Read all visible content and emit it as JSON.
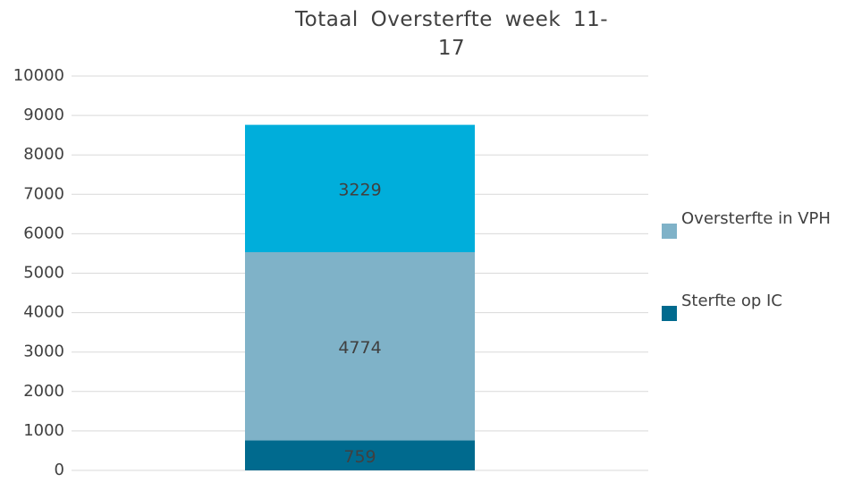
{
  "chart_data": {
    "type": "stacked_bar",
    "title": "Totaal Oversterfte week 11-17",
    "series": [
      {
        "name": "Sterfte op IC",
        "color": "#006a8e",
        "values": [
          759
        ]
      },
      {
        "name": "Oversterfte in VPH",
        "color": "#7fb2c8",
        "values": [
          4774
        ]
      },
      {
        "color": "#00aedb",
        "values": [
          3229
        ]
      }
    ],
    "ylim": [
      0,
      10000
    ],
    "yticks": [
      0,
      1000,
      2000,
      3000,
      4000,
      5000,
      6000,
      7000,
      8000,
      9000,
      10000
    ],
    "grid": true,
    "legend": "right"
  }
}
